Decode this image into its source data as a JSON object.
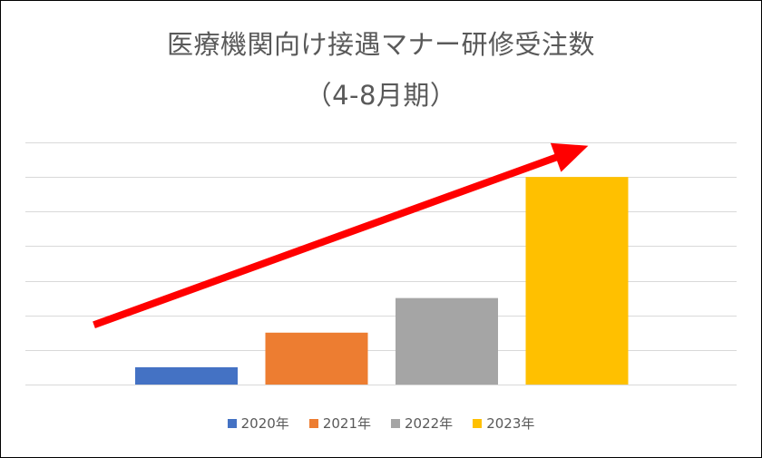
{
  "chart_data": {
    "type": "bar",
    "title": "医療機関向け接遇マナー研修受注数",
    "subtitle": "（4-8月期）",
    "categories": [
      "2020年",
      "2021年",
      "2022年",
      "2023年"
    ],
    "values": [
      1,
      3,
      5,
      12
    ],
    "ylim": [
      0,
      14
    ],
    "y_gridlines": 7,
    "y_tick_labels_shown": false,
    "grid": true,
    "legend": "bottom",
    "colors": [
      "#4472C4",
      "#ED7D31",
      "#A5A5A5",
      "#FFC000"
    ],
    "annotation": {
      "type": "arrow",
      "direction": "up-right",
      "color": "#FF0000",
      "from": [
        0.0,
        3.5
      ],
      "to": [
        3.4,
        13.7
      ]
    }
  }
}
